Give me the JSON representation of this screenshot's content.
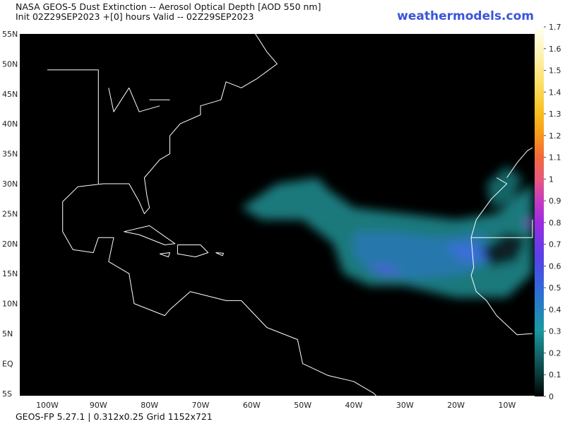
{
  "header": {
    "title": "NASA GEOS-5 Dust Extinction -- Aerosol Optical Depth [AOD 550 nm]",
    "subtitle": "Init 02Z29SEP2023 +[0] hours Valid -- 02Z29SEP2023",
    "brand": "weathermodels.com"
  },
  "map": {
    "lat_labels": [
      "55N",
      "50N",
      "45N",
      "40N",
      "35N",
      "30N",
      "25N",
      "20N",
      "15N",
      "10N",
      "5N",
      "EQ",
      "5S"
    ],
    "lon_labels": [
      "100W",
      "90W",
      "80W",
      "70W",
      "60W",
      "50W",
      "40W",
      "30W",
      "20W",
      "10W"
    ]
  },
  "colorbar": {
    "ticks": [
      0,
      0.1,
      0.2,
      0.3,
      0.4,
      0.5,
      0.6,
      0.7,
      0.8,
      0.9,
      1,
      1.1,
      1.2,
      1.3,
      1.4,
      1.5,
      1.6,
      1.7
    ]
  },
  "footer": "GEOS-FP 5.27.1 | 0.312x0.25 Grid 1152x721"
}
